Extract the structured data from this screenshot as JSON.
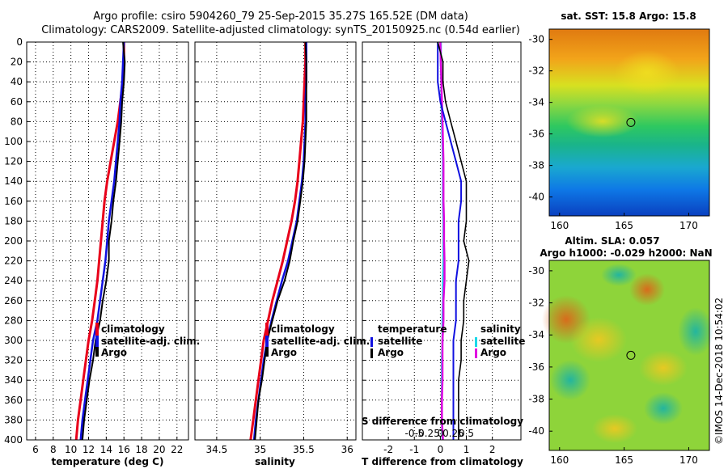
{
  "figure": {
    "title_line1": "Argo profile: csiro 5904260_79 25-Sep-2015 35.27S 165.52E (DM data)",
    "title_line2": "Climatology: CARS2009. Satellite-adjusted climatology: synTS_20150925.nc (0.54d earlier)",
    "watermark": "©IMOS 14-Dec-2018 10:54:02"
  },
  "colors": {
    "climatology": "#e8001a",
    "satellite": "#1010e0",
    "argo": "#000000",
    "salinity_sat": "#1ad8e8",
    "salinity_argo": "#e000e0"
  },
  "legends": {
    "profile": {
      "climatology": "climatology",
      "satellite": "satellite-adj. clim.",
      "argo": "Argo"
    },
    "difference": {
      "temperature": "temperature",
      "salinity": "salinity",
      "satellite": "satellite",
      "argo": "Argo"
    }
  },
  "maps": {
    "sst_title": "sat. SST: 15.8 Argo: 15.8",
    "sla_title1": "Altim. SLA: 0.057",
    "sla_title2": "Argo h1000: -0.029 h2000: NaN",
    "lat_ticks": [
      "-30",
      "-32",
      "-34",
      "-36",
      "-38",
      "-40"
    ],
    "lon_ticks": [
      "160",
      "165",
      "170"
    ],
    "float_lon": 165.52,
    "float_lat": -35.27
  },
  "chart_data": [
    {
      "type": "line",
      "name": "temperature-profile",
      "xlabel": "temperature (deg C)",
      "ylabel": "",
      "xlim": [
        5,
        23.3
      ],
      "ylim": [
        400,
        0
      ],
      "xticks": [
        6,
        8,
        10,
        12,
        14,
        16,
        18,
        20,
        22
      ],
      "yticks": [
        0,
        20,
        40,
        60,
        80,
        100,
        120,
        140,
        160,
        180,
        200,
        220,
        240,
        260,
        280,
        300,
        320,
        340,
        360,
        380,
        400
      ],
      "grid": true,
      "series": [
        {
          "name": "climatology",
          "depth": [
            0,
            20,
            40,
            60,
            80,
            100,
            120,
            140,
            160,
            180,
            200,
            220,
            240,
            260,
            280,
            300,
            320,
            340,
            360,
            380,
            400
          ],
          "values": [
            16.0,
            16.0,
            15.9,
            15.6,
            15.3,
            14.9,
            14.5,
            14.1,
            13.8,
            13.6,
            13.4,
            13.2,
            13.0,
            12.7,
            12.4,
            12.0,
            11.7,
            11.4,
            11.1,
            10.8,
            10.6
          ]
        },
        {
          "name": "satellite-adj. clim.",
          "depth": [
            0,
            20,
            40,
            60,
            80,
            100,
            120,
            140,
            160,
            180,
            200,
            220,
            240,
            260,
            280,
            300,
            320,
            340,
            360,
            380,
            400
          ],
          "values": [
            16.0,
            15.9,
            15.8,
            15.6,
            15.5,
            15.3,
            15.1,
            14.9,
            14.6,
            14.3,
            14.1,
            13.9,
            13.6,
            13.3,
            13.0,
            12.5,
            12.2,
            11.9,
            11.6,
            11.3,
            11.1
          ]
        },
        {
          "name": "Argo",
          "depth": [
            0,
            20,
            40,
            60,
            80,
            100,
            120,
            140,
            160,
            180,
            200,
            220,
            240,
            260,
            280,
            300,
            320,
            340,
            360,
            380,
            400
          ],
          "values": [
            15.9,
            16.1,
            16.0,
            15.8,
            15.7,
            15.5,
            15.3,
            15.1,
            14.8,
            14.6,
            14.3,
            14.3,
            14.0,
            13.6,
            13.3,
            12.8,
            12.5,
            12.1,
            11.8,
            11.5,
            11.3
          ]
        }
      ]
    },
    {
      "type": "line",
      "name": "salinity-profile",
      "xlabel": "salinity",
      "ylabel": "",
      "xlim": [
        34.25,
        36.1
      ],
      "ylim": [
        400,
        0
      ],
      "xticks": [
        "34.5",
        "35",
        "35.5",
        "36"
      ],
      "grid": true,
      "series": [
        {
          "name": "climatology",
          "depth": [
            0,
            20,
            40,
            60,
            80,
            100,
            120,
            140,
            160,
            180,
            200,
            220,
            240,
            260,
            280,
            300,
            320,
            340,
            360,
            380,
            400
          ],
          "values": [
            35.52,
            35.52,
            35.51,
            35.5,
            35.49,
            35.47,
            35.45,
            35.43,
            35.4,
            35.36,
            35.31,
            35.26,
            35.2,
            35.14,
            35.09,
            35.04,
            35.01,
            34.98,
            34.95,
            34.92,
            34.89
          ]
        },
        {
          "name": "satellite-adj. clim.",
          "depth": [
            0,
            20,
            40,
            60,
            80,
            100,
            120,
            140,
            160,
            180,
            200,
            220,
            240,
            260,
            280,
            300,
            320,
            340,
            360,
            380,
            400
          ],
          "values": [
            35.53,
            35.53,
            35.53,
            35.52,
            35.52,
            35.51,
            35.5,
            35.48,
            35.45,
            35.42,
            35.37,
            35.32,
            35.25,
            35.19,
            35.13,
            35.08,
            35.04,
            35.01,
            34.98,
            34.95,
            34.93
          ]
        },
        {
          "name": "Argo",
          "depth": [
            0,
            20,
            40,
            60,
            80,
            100,
            120,
            140,
            160,
            180,
            200,
            220,
            240,
            260,
            280,
            300,
            320,
            340,
            360,
            380,
            400
          ],
          "values": [
            35.52,
            35.53,
            35.53,
            35.53,
            35.53,
            35.52,
            35.51,
            35.49,
            35.46,
            35.43,
            35.38,
            35.34,
            35.28,
            35.2,
            35.14,
            35.08,
            35.05,
            35.02,
            34.98,
            34.96,
            34.94
          ]
        }
      ]
    },
    {
      "type": "line",
      "name": "difference-profile",
      "xlabel": "T difference from climatology",
      "xlabel_top": "S difference from climatology",
      "xlim": [
        -3,
        3.1
      ],
      "ylim": [
        400,
        0
      ],
      "xticks": [
        "-2",
        "-1",
        "0",
        "1",
        "2"
      ],
      "s_xticks": [
        "-0.5",
        "-0.25",
        "0",
        "0.25",
        "0.5"
      ],
      "grid": true,
      "series": [
        {
          "name": "T satellite",
          "depth": [
            0,
            20,
            40,
            60,
            80,
            100,
            120,
            140,
            160,
            180,
            200,
            220,
            240,
            260,
            280,
            300,
            320,
            340,
            360,
            380,
            400
          ],
          "values": [
            -0.1,
            -0.1,
            -0.1,
            0.0,
            0.2,
            0.4,
            0.6,
            0.8,
            0.8,
            0.7,
            0.7,
            0.7,
            0.6,
            0.6,
            0.6,
            0.5,
            0.5,
            0.5,
            0.5,
            0.5,
            0.5
          ]
        },
        {
          "name": "T Argo",
          "depth": [
            0,
            20,
            40,
            60,
            80,
            100,
            120,
            140,
            160,
            180,
            200,
            220,
            240,
            260,
            280,
            300,
            320,
            340,
            360,
            380,
            400
          ],
          "values": [
            -0.1,
            0.1,
            0.1,
            0.2,
            0.4,
            0.6,
            0.8,
            1.0,
            1.0,
            1.0,
            0.9,
            1.1,
            1.0,
            0.9,
            0.9,
            0.8,
            0.8,
            0.7,
            0.7,
            0.7,
            0.7
          ]
        },
        {
          "name": "S satellite",
          "depth": [
            0,
            20,
            40,
            60,
            80,
            100,
            120,
            140,
            160,
            180,
            200,
            220,
            240,
            260,
            280,
            300,
            320,
            340,
            360,
            380,
            400
          ],
          "values": [
            0.01,
            0.01,
            0.02,
            0.02,
            0.03,
            0.04,
            0.05,
            0.05,
            0.05,
            0.06,
            0.06,
            0.06,
            0.05,
            0.05,
            0.04,
            0.04,
            0.03,
            0.03,
            0.03,
            0.03,
            0.04
          ]
        },
        {
          "name": "S Argo",
          "depth": [
            0,
            20,
            40,
            60,
            80,
            100,
            120,
            140,
            160,
            180,
            200,
            220,
            240,
            260,
            280,
            300,
            320,
            340,
            360,
            380,
            400
          ],
          "values": [
            0.0,
            0.01,
            0.02,
            0.03,
            0.04,
            0.05,
            0.06,
            0.06,
            0.06,
            0.07,
            0.07,
            0.08,
            0.08,
            0.06,
            0.06,
            0.04,
            0.04,
            0.04,
            0.03,
            0.03,
            0.05
          ]
        }
      ]
    }
  ]
}
